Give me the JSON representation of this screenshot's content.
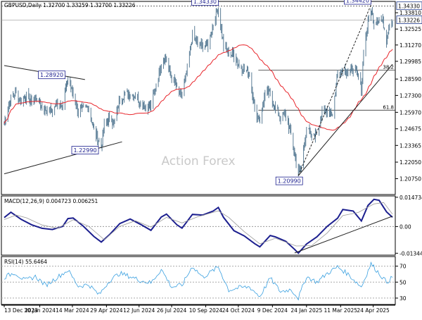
{
  "chart_data": [
    {
      "type": "candlestick",
      "header": "GBPUSD,Daily  1.32700  1.33259  1.32700  1.33226",
      "watermark": "Action Forex",
      "ylim": [
        1.195,
        1.347
      ],
      "y_ticks": [
        "1.33810",
        "1.32525",
        "1.31270",
        "1.29985",
        "1.28590",
        "1.27300",
        "1.25970",
        "1.24675",
        "1.23365",
        "1.22050",
        "1.20750"
      ],
      "y_tick_values": [
        1.3381,
        1.32525,
        1.3127,
        1.29985,
        1.2859,
        1.273,
        1.2597,
        1.24675,
        1.23365,
        1.2205,
        1.2075
      ],
      "price_tags": [
        {
          "value": 1.3433,
          "label": "1.34330",
          "color": "#1f3a8c"
        },
        {
          "value": 1.33226,
          "label": "1.33226",
          "color": "#1f3a8c"
        }
      ],
      "annotations": [
        {
          "label": "1.34330",
          "date": "2024-09-27",
          "value": 1.3433,
          "place": "above"
        },
        {
          "label": "1.34420",
          "date": "2025-04-21",
          "value": 1.3442,
          "place": "above"
        },
        {
          "label": "1.28920",
          "date": "2024-03-08",
          "value": 1.2892,
          "place": "left"
        },
        {
          "label": "1.22990",
          "date": "2024-04-22",
          "value": 1.2299,
          "place": "left"
        },
        {
          "label": "1.20990",
          "date": "2025-01-13",
          "value": 1.2099,
          "place": "below"
        }
      ],
      "fib_levels": [
        {
          "label": "38.2",
          "value": 1.2929,
          "from": "2024-11-20"
        },
        {
          "label": "61.8",
          "value": 1.2614,
          "from": "2024-11-20"
        }
      ],
      "moving_average_color": "#e8252b",
      "close_series": [
        [
          "2023-12-13",
          1.251
        ],
        [
          "2023-12-20",
          1.268
        ],
        [
          "2023-12-28",
          1.275
        ],
        [
          "2024-01-05",
          1.268
        ],
        [
          "2024-01-12",
          1.273
        ],
        [
          "2024-01-19",
          1.268
        ],
        [
          "2024-01-26",
          1.271
        ],
        [
          "2024-02-02",
          1.263
        ],
        [
          "2024-02-09",
          1.262
        ],
        [
          "2024-02-16",
          1.26
        ],
        [
          "2024-02-23",
          1.268
        ],
        [
          "2024-03-01",
          1.266
        ],
        [
          "2024-03-08",
          1.287
        ],
        [
          "2024-03-15",
          1.274
        ],
        [
          "2024-03-22",
          1.26
        ],
        [
          "2024-03-29",
          1.263
        ],
        [
          "2024-04-05",
          1.264
        ],
        [
          "2024-04-12",
          1.245
        ],
        [
          "2024-04-19",
          1.237
        ],
        [
          "2024-04-22",
          1.232
        ],
        [
          "2024-04-26",
          1.249
        ],
        [
          "2024-05-03",
          1.255
        ],
        [
          "2024-05-10",
          1.252
        ],
        [
          "2024-05-17",
          1.27
        ],
        [
          "2024-05-24",
          1.274
        ],
        [
          "2024-05-31",
          1.274
        ],
        [
          "2024-06-07",
          1.273
        ],
        [
          "2024-06-14",
          1.268
        ],
        [
          "2024-06-21",
          1.264
        ],
        [
          "2024-06-28",
          1.264
        ],
        [
          "2024-07-05",
          1.281
        ],
        [
          "2024-07-12",
          1.299
        ],
        [
          "2024-07-17",
          1.304
        ],
        [
          "2024-07-26",
          1.287
        ],
        [
          "2024-08-02",
          1.279
        ],
        [
          "2024-08-08",
          1.272
        ],
        [
          "2024-08-16",
          1.293
        ],
        [
          "2024-08-23",
          1.321
        ],
        [
          "2024-08-30",
          1.313
        ],
        [
          "2024-09-06",
          1.312
        ],
        [
          "2024-09-13",
          1.313
        ],
        [
          "2024-09-20",
          1.329
        ],
        [
          "2024-09-27",
          1.342
        ],
        [
          "2024-10-04",
          1.312
        ],
        [
          "2024-10-11",
          1.306
        ],
        [
          "2024-10-18",
          1.305
        ],
        [
          "2024-10-25",
          1.297
        ],
        [
          "2024-11-01",
          1.292
        ],
        [
          "2024-11-08",
          1.292
        ],
        [
          "2024-11-15",
          1.262
        ],
        [
          "2024-11-22",
          1.253
        ],
        [
          "2024-11-29",
          1.274
        ],
        [
          "2024-12-06",
          1.275
        ],
        [
          "2024-12-13",
          1.262
        ],
        [
          "2024-12-20",
          1.256
        ],
        [
          "2024-12-27",
          1.258
        ],
        [
          "2025-01-03",
          1.242
        ],
        [
          "2025-01-10",
          1.221
        ],
        [
          "2025-01-13",
          1.213
        ],
        [
          "2025-01-17",
          1.217
        ],
        [
          "2025-01-24",
          1.248
        ],
        [
          "2025-01-31",
          1.24
        ],
        [
          "2025-02-07",
          1.244
        ],
        [
          "2025-02-14",
          1.258
        ],
        [
          "2025-02-21",
          1.263
        ],
        [
          "2025-02-28",
          1.258
        ],
        [
          "2025-03-07",
          1.291
        ],
        [
          "2025-03-14",
          1.294
        ],
        [
          "2025-03-21",
          1.292
        ],
        [
          "2025-03-28",
          1.294
        ],
        [
          "2025-04-04",
          1.288
        ],
        [
          "2025-04-08",
          1.276
        ],
        [
          "2025-04-11",
          1.309
        ],
        [
          "2025-04-17",
          1.329
        ],
        [
          "2025-04-21",
          1.341
        ],
        [
          "2025-04-25",
          1.33
        ],
        [
          "2025-04-30",
          1.333
        ],
        [
          "2025-05-07",
          1.331
        ],
        [
          "2025-05-12",
          1.317
        ],
        [
          "2025-05-15",
          1.328
        ],
        [
          "2025-05-20",
          1.3323
        ]
      ]
    },
    {
      "type": "line",
      "label": "MACD(12,26,9) 0.004723 0.006251",
      "ylim": [
        -0.0144,
        0.0154
      ],
      "y_ticks": [
        "0.014734",
        "0.00",
        "-0.013442"
      ],
      "y_tick_values": [
        0.014734,
        0.0,
        -0.013442
      ],
      "trendline": [
        [
          "2025-01-08",
          -0.0133
        ],
        [
          "2025-05-20",
          0.0052
        ]
      ],
      "series": [
        {
          "role": "macd",
          "color": "#1c1f8f",
          "points": [
            [
              "2023-12-13",
              0.0045
            ],
            [
              "2023-12-22",
              0.0072
            ],
            [
              "2024-01-05",
              0.0036
            ],
            [
              "2024-01-19",
              0.0009
            ],
            [
              "2024-02-02",
              -0.0009
            ],
            [
              "2024-02-16",
              -0.0015
            ],
            [
              "2024-03-01",
              0.0001
            ],
            [
              "2024-03-08",
              0.004
            ],
            [
              "2024-03-15",
              0.0043
            ],
            [
              "2024-03-29",
              0.0001
            ],
            [
              "2024-04-12",
              -0.005
            ],
            [
              "2024-04-22",
              -0.0078
            ],
            [
              "2024-05-03",
              -0.0041
            ],
            [
              "2024-05-17",
              0.0015
            ],
            [
              "2024-05-31",
              0.0038
            ],
            [
              "2024-06-14",
              0.0011
            ],
            [
              "2024-06-28",
              -0.0019
            ],
            [
              "2024-07-12",
              0.0048
            ],
            [
              "2024-07-19",
              0.0063
            ],
            [
              "2024-08-02",
              0.0009
            ],
            [
              "2024-08-09",
              -0.0008
            ],
            [
              "2024-08-23",
              0.0061
            ],
            [
              "2024-09-06",
              0.0058
            ],
            [
              "2024-09-20",
              0.0078
            ],
            [
              "2024-09-27",
              0.0096
            ],
            [
              "2024-10-04",
              0.0046
            ],
            [
              "2024-10-18",
              -0.0021
            ],
            [
              "2024-11-01",
              -0.0047
            ],
            [
              "2024-11-15",
              -0.0086
            ],
            [
              "2024-11-22",
              -0.0102
            ],
            [
              "2024-12-06",
              -0.0045
            ],
            [
              "2024-12-13",
              -0.0052
            ],
            [
              "2024-12-27",
              -0.0074
            ],
            [
              "2025-01-08",
              -0.0115
            ],
            [
              "2025-01-13",
              -0.0134
            ],
            [
              "2025-01-24",
              -0.0088
            ],
            [
              "2025-02-07",
              -0.0052
            ],
            [
              "2025-02-21",
              0.0001
            ],
            [
              "2025-03-07",
              0.0042
            ],
            [
              "2025-03-14",
              0.0086
            ],
            [
              "2025-03-28",
              0.0078
            ],
            [
              "2025-04-08",
              0.0028
            ],
            [
              "2025-04-17",
              0.0106
            ],
            [
              "2025-04-25",
              0.0137
            ],
            [
              "2025-05-02",
              0.0132
            ],
            [
              "2025-05-12",
              0.0074
            ],
            [
              "2025-05-20",
              0.0047
            ]
          ]
        },
        {
          "role": "signal",
          "color": "#9a9a9a",
          "points": [
            [
              "2023-12-13",
              0.0035
            ],
            [
              "2023-12-29",
              0.0058
            ],
            [
              "2024-01-12",
              0.0044
            ],
            [
              "2024-02-02",
              0.0008
            ],
            [
              "2024-02-23",
              -0.0009
            ],
            [
              "2024-03-15",
              0.0034
            ],
            [
              "2024-04-05",
              0.0001
            ],
            [
              "2024-04-26",
              -0.0066
            ],
            [
              "2024-05-17",
              0.0001
            ],
            [
              "2024-06-07",
              0.0029
            ],
            [
              "2024-06-28",
              -0.0002
            ],
            [
              "2024-07-19",
              0.0046
            ],
            [
              "2024-08-09",
              0.0018
            ],
            [
              "2024-08-30",
              0.0049
            ],
            [
              "2024-09-27",
              0.0079
            ],
            [
              "2024-10-11",
              0.0046
            ],
            [
              "2024-11-01",
              -0.0026
            ],
            [
              "2024-11-22",
              -0.0087
            ],
            [
              "2024-12-13",
              -0.0059
            ],
            [
              "2025-01-10",
              -0.0098
            ],
            [
              "2025-01-31",
              -0.0096
            ],
            [
              "2025-02-21",
              -0.0032
            ],
            [
              "2025-03-14",
              0.0055
            ],
            [
              "2025-04-04",
              0.0071
            ],
            [
              "2025-04-25",
              0.0114
            ],
            [
              "2025-05-08",
              0.0121
            ],
            [
              "2025-05-20",
              0.0063
            ]
          ]
        }
      ]
    },
    {
      "type": "line",
      "label": "RSI(14) 55.6464",
      "ylim": [
        22,
        82
      ],
      "y_ticks": [
        "70",
        "50",
        "30"
      ],
      "y_tick_values": [
        70,
        50,
        30
      ],
      "series": [
        {
          "role": "rsi",
          "color": "#3aa0e0",
          "points": [
            [
              "2023-12-13",
              56
            ],
            [
              "2023-12-27",
              62
            ],
            [
              "2024-01-10",
              52
            ],
            [
              "2024-01-24",
              57
            ],
            [
              "2024-02-07",
              46
            ],
            [
              "2024-02-21",
              55
            ],
            [
              "2024-03-08",
              65
            ],
            [
              "2024-03-22",
              45
            ],
            [
              "2024-04-05",
              47
            ],
            [
              "2024-04-19",
              34
            ],
            [
              "2024-05-03",
              52
            ],
            [
              "2024-05-17",
              61
            ],
            [
              "2024-05-31",
              57
            ],
            [
              "2024-06-14",
              52
            ],
            [
              "2024-06-28",
              49
            ],
            [
              "2024-07-12",
              66
            ],
            [
              "2024-07-26",
              44
            ],
            [
              "2024-08-09",
              46
            ],
            [
              "2024-08-23",
              70
            ],
            [
              "2024-09-06",
              56
            ],
            [
              "2024-09-27",
              69
            ],
            [
              "2024-10-11",
              40
            ],
            [
              "2024-10-25",
              43
            ],
            [
              "2024-11-08",
              44
            ],
            [
              "2024-11-22",
              32
            ],
            [
              "2024-12-06",
              55
            ],
            [
              "2024-12-20",
              38
            ],
            [
              "2025-01-03",
              41
            ],
            [
              "2025-01-13",
              30
            ],
            [
              "2025-01-24",
              57
            ],
            [
              "2025-02-07",
              50
            ],
            [
              "2025-02-21",
              61
            ],
            [
              "2025-03-07",
              69
            ],
            [
              "2025-03-21",
              60
            ],
            [
              "2025-04-08",
              44
            ],
            [
              "2025-04-21",
              73
            ],
            [
              "2025-05-02",
              61
            ],
            [
              "2025-05-12",
              50
            ],
            [
              "2025-05-20",
              56
            ]
          ]
        }
      ]
    }
  ],
  "x_axis": {
    "labels": [
      "13 Dec 2023",
      "30 Jan 2024",
      "14 Mar 2024",
      "29 Apr 2024",
      "12 Jun 2024",
      "26 Jul 2024",
      "10 Sep 2024",
      "24 Oct 2024",
      "9 Dec 2024",
      "24 Jan 2025",
      "11 Mar 2025",
      "24 Apr 2025"
    ],
    "label_dates": [
      "2023-12-13",
      "2024-01-30",
      "2024-03-14",
      "2024-04-29",
      "2024-06-12",
      "2024-07-26",
      "2024-09-10",
      "2024-10-24",
      "2024-12-09",
      "2025-01-24",
      "2025-03-11",
      "2025-04-24"
    ],
    "start": "2023-12-13",
    "end": "2025-05-20"
  }
}
